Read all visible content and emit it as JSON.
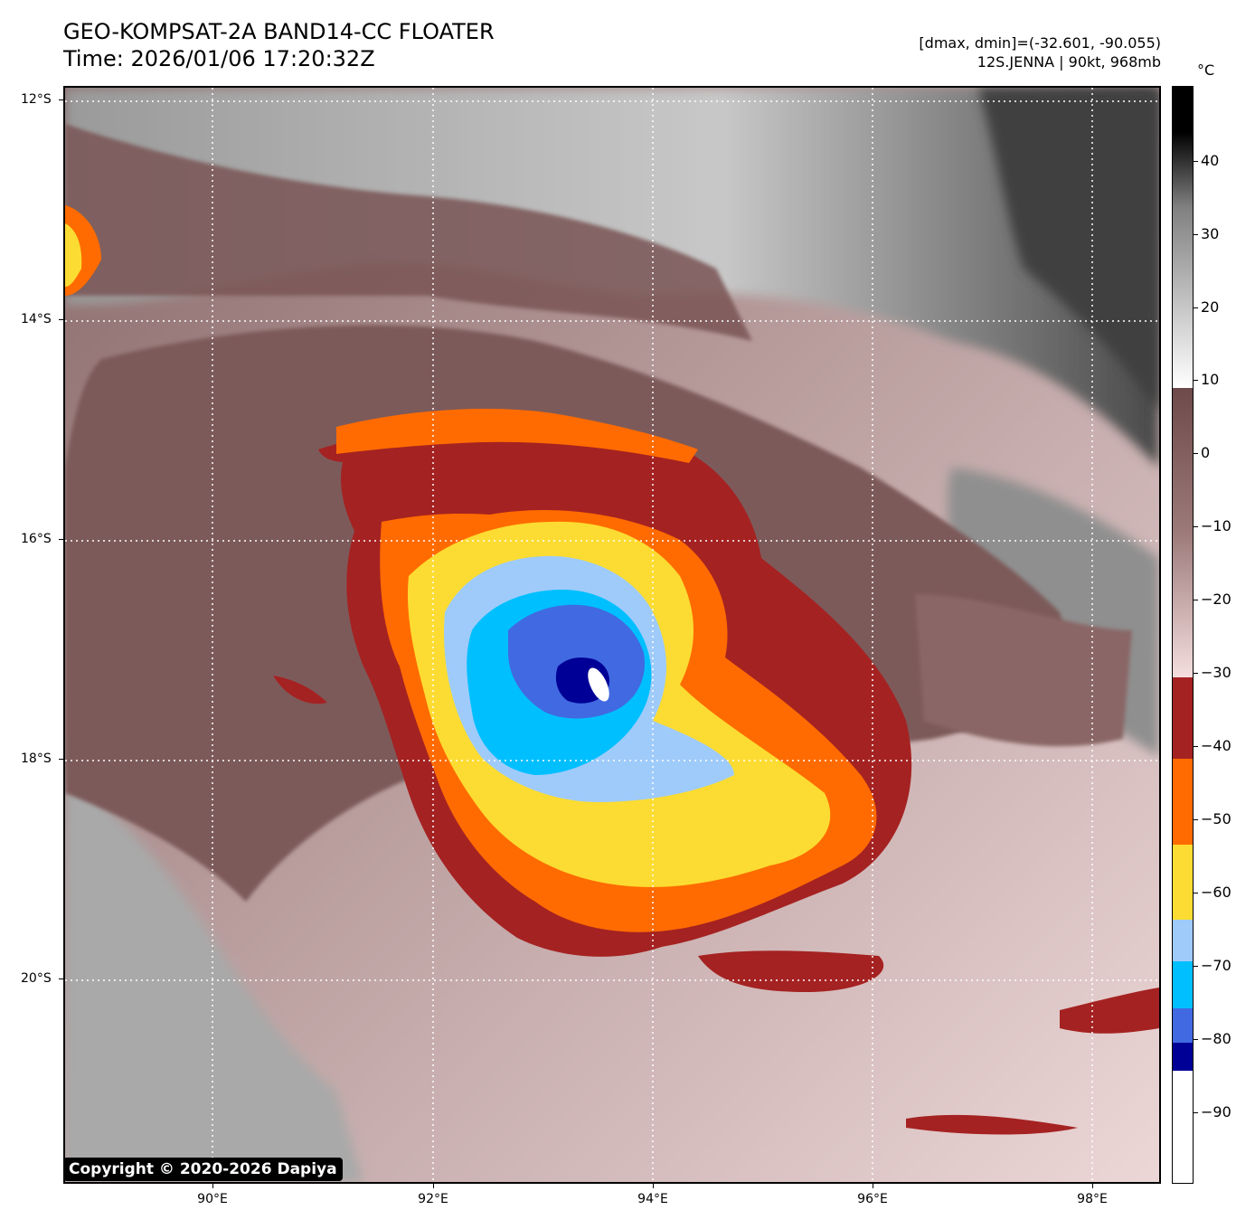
{
  "header": {
    "title_line1": "GEO-KOMPSAT-2A BAND14-CC FLOATER",
    "title_line2": "Time: 2026/01/06 17:20:32Z",
    "range_text": "[dmax, dmin]=(-32.601, -90.055)",
    "storm_text": "12S.JENNA | 90kt, 968mb"
  },
  "map": {
    "lat_labels": [
      "12°S",
      "14°S",
      "16°S",
      "18°S",
      "20°S"
    ],
    "lon_labels": [
      "90°E",
      "92°E",
      "94°E",
      "96°E",
      "98°E"
    ],
    "copyright": "Copyright © 2020-2026 Dapiya"
  },
  "colorbar": {
    "unit": "°C",
    "labels": [
      "40",
      "30",
      "20",
      "10",
      "0",
      "−10",
      "−20",
      "−30",
      "−40",
      "−50",
      "−60",
      "−70",
      "−80",
      "−90"
    ]
  },
  "colors": {
    "dark_red": "#a52222",
    "orange": "#ff6b00",
    "yellow": "#fcdc32",
    "light_blue": "#9fcbfa",
    "cyan": "#00bfff",
    "royal_blue": "#4169e1",
    "navy": "#000096",
    "brown": "#7a5555",
    "pink": "#ead0d0"
  }
}
